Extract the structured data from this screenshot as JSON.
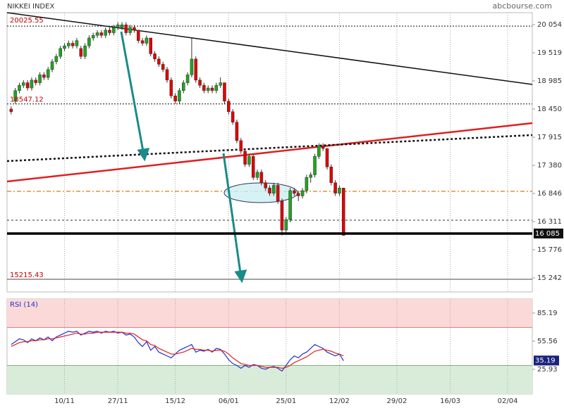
{
  "chart_data": {
    "type": "candlestick",
    "title": "NIKKEI INDEX",
    "source": "abcbourse.com",
    "xlim": [
      -1,
      127
    ],
    "xticks": [
      {
        "value": 13,
        "label": "10/11"
      },
      {
        "value": 26,
        "label": "27/11"
      },
      {
        "value": 40,
        "label": "15/12"
      },
      {
        "value": 53,
        "label": "06/01"
      },
      {
        "value": 67,
        "label": "25/01"
      },
      {
        "value": 80,
        "label": "12/02"
      },
      {
        "value": 94,
        "label": "29/02"
      },
      {
        "value": 107,
        "label": "16/03"
      },
      {
        "value": 121,
        "label": "02/04"
      }
    ],
    "ylim": [
      14975,
      20281
    ],
    "yticks": [
      {
        "value": 20054,
        "label": "20 054"
      },
      {
        "value": 19519,
        "label": "19 519"
      },
      {
        "value": 18985,
        "label": "18 985"
      },
      {
        "value": 18450,
        "label": "18 450"
      },
      {
        "value": 17915,
        "label": "17 915"
      },
      {
        "value": 17380,
        "label": "17 380"
      },
      {
        "value": 16846,
        "label": "16 846"
      },
      {
        "value": 16311,
        "label": "16 311"
      },
      {
        "value": 15776,
        "label": "15 776"
      },
      {
        "value": 15242,
        "label": "15 242"
      }
    ],
    "up_color": "#1fa51f",
    "down_color": "#e00000",
    "candles": [
      [
        18450,
        18500,
        18350,
        18400
      ],
      [
        18600,
        18850,
        18550,
        18800
      ],
      [
        18800,
        18950,
        18750,
        18900
      ],
      [
        18900,
        19000,
        18850,
        18950
      ],
      [
        18950,
        19000,
        18800,
        18850
      ],
      [
        18850,
        19050,
        18800,
        19000
      ],
      [
        19000,
        19050,
        18900,
        18950
      ],
      [
        18950,
        19150,
        18900,
        19100
      ],
      [
        19100,
        19150,
        19000,
        19050
      ],
      [
        19050,
        19250,
        19000,
        19200
      ],
      [
        19200,
        19400,
        19150,
        19350
      ],
      [
        19350,
        19500,
        19300,
        19450
      ],
      [
        19450,
        19650,
        19400,
        19600
      ],
      [
        19600,
        19700,
        19550,
        19650
      ],
      [
        19650,
        19750,
        19600,
        19700
      ],
      [
        19700,
        19750,
        19600,
        19650
      ],
      [
        19650,
        19800,
        19600,
        19750
      ],
      [
        19600,
        19650,
        19400,
        19450
      ],
      [
        19450,
        19700,
        19400,
        19650
      ],
      [
        19650,
        19850,
        19600,
        19800
      ],
      [
        19800,
        19900,
        19750,
        19850
      ],
      [
        19850,
        19950,
        19800,
        19900
      ],
      [
        19900,
        19950,
        19800,
        19850
      ],
      [
        19850,
        20000,
        19800,
        19950
      ],
      [
        19950,
        20000,
        19850,
        19900
      ],
      [
        19900,
        20050,
        19850,
        20000
      ],
      [
        20000,
        20100,
        19950,
        20050
      ],
      [
        20000,
        20100,
        19950,
        20050
      ],
      [
        20050,
        20100,
        19850,
        19900
      ],
      [
        19900,
        20050,
        19850,
        20000
      ],
      [
        20000,
        20050,
        19900,
        19950
      ],
      [
        19950,
        19950,
        19700,
        19750
      ],
      [
        19750,
        19800,
        19650,
        19700
      ],
      [
        19700,
        19850,
        19650,
        19800
      ],
      [
        19800,
        19800,
        19450,
        19500
      ],
      [
        19500,
        19550,
        19350,
        19400
      ],
      [
        19400,
        19450,
        19250,
        19300
      ],
      [
        19300,
        19350,
        19150,
        19200
      ],
      [
        19200,
        19250,
        18950,
        19000
      ],
      [
        19000,
        19050,
        18650,
        18700
      ],
      [
        18700,
        18750,
        18550,
        18600
      ],
      [
        18600,
        18850,
        18550,
        18800
      ],
      [
        18800,
        19000,
        18750,
        18950
      ],
      [
        18950,
        19150,
        18900,
        19100
      ],
      [
        19100,
        19800,
        19050,
        19400
      ],
      [
        19400,
        19450,
        18950,
        19000
      ],
      [
        19000,
        19050,
        18850,
        18900
      ],
      [
        18900,
        18950,
        18750,
        18800
      ],
      [
        18800,
        18900,
        18750,
        18850
      ],
      [
        18850,
        18900,
        18750,
        18800
      ],
      [
        18800,
        18950,
        18750,
        18900
      ],
      [
        18900,
        19050,
        18850,
        18950
      ],
      [
        18950,
        18950,
        18550,
        18600
      ],
      [
        18600,
        18650,
        18350,
        18400
      ],
      [
        18400,
        18450,
        18150,
        18200
      ],
      [
        18200,
        18250,
        17800,
        17850
      ],
      [
        17850,
        17900,
        17600,
        17650
      ],
      [
        17650,
        17700,
        17350,
        17400
      ],
      [
        17400,
        17600,
        17350,
        17550
      ],
      [
        17550,
        17600,
        17100,
        17150
      ],
      [
        17150,
        17300,
        17100,
        17250
      ],
      [
        17250,
        17300,
        17000,
        17050
      ],
      [
        17050,
        17100,
        16900,
        16950
      ],
      [
        16950,
        17000,
        16800,
        16850
      ],
      [
        16850,
        17050,
        16800,
        17000
      ],
      [
        17000,
        17050,
        16650,
        16700
      ],
      [
        16700,
        16750,
        16050,
        16150
      ],
      [
        16150,
        16400,
        16100,
        16350
      ],
      [
        16350,
        16950,
        16300,
        16900
      ],
      [
        16900,
        16950,
        16800,
        16850
      ],
      [
        16850,
        16900,
        16700,
        16800
      ],
      [
        16800,
        16950,
        16750,
        16900
      ],
      [
        16900,
        17200,
        16850,
        17150
      ],
      [
        17150,
        17250,
        17050,
        17200
      ],
      [
        17200,
        17600,
        17150,
        17550
      ],
      [
        17550,
        17800,
        17500,
        17750
      ],
      [
        17750,
        17800,
        17650,
        17700
      ],
      [
        17700,
        17700,
        17300,
        17350
      ],
      [
        17350,
        17400,
        17000,
        17050
      ],
      [
        17050,
        17100,
        16800,
        16850
      ],
      [
        16850,
        17000,
        16800,
        16950
      ],
      [
        16950,
        16950,
        16050,
        16050
      ]
    ],
    "levels": [
      20025.55,
      18547.12,
      15215.43
    ],
    "last_price": {
      "value": 16085,
      "label": "16 085"
    },
    "rsi": {
      "title": "RSI (14)",
      "ylim": [
        0,
        100
      ],
      "yticks": [
        85.19,
        55.56,
        25.93
      ],
      "overbought": 70,
      "oversold": 30,
      "last": 35.19,
      "series": [
        {
          "color": "#2233cc",
          "values": [
            52,
            55,
            58,
            57,
            54,
            58,
            56,
            59,
            57,
            60,
            56,
            60,
            62,
            64,
            66,
            65,
            66,
            62,
            64,
            66,
            65,
            66,
            64,
            66,
            65,
            66,
            64,
            65,
            62,
            63,
            60,
            54,
            50,
            55,
            46,
            50,
            44,
            42,
            40,
            38,
            42,
            46,
            48,
            50,
            52,
            44,
            46,
            45,
            47,
            44,
            48,
            47,
            42,
            36,
            32,
            30,
            27,
            30,
            28,
            31,
            30,
            27,
            26,
            28,
            29,
            27,
            24,
            30,
            36,
            40,
            38,
            42,
            44,
            48,
            52,
            50,
            48,
            44,
            42,
            40,
            42,
            35
          ]
        },
        {
          "color": "#e02020",
          "values": [
            50,
            52,
            54,
            55,
            55,
            56,
            56,
            57,
            57,
            58,
            58,
            59,
            60,
            61,
            62,
            63,
            64,
            63,
            63,
            64,
            64,
            65,
            65,
            65,
            65,
            65,
            65,
            65,
            64,
            64,
            63,
            60,
            57,
            56,
            52,
            51,
            48,
            46,
            44,
            42,
            42,
            43,
            44,
            46,
            48,
            47,
            47,
            46,
            46,
            45,
            46,
            46,
            45,
            42,
            38,
            35,
            32,
            31,
            30,
            30,
            30,
            29,
            28,
            28,
            28,
            28,
            27,
            28,
            30,
            33,
            35,
            37,
            39,
            42,
            45,
            46,
            47,
            46,
            45,
            43,
            42,
            40
          ]
        }
      ]
    }
  }
}
